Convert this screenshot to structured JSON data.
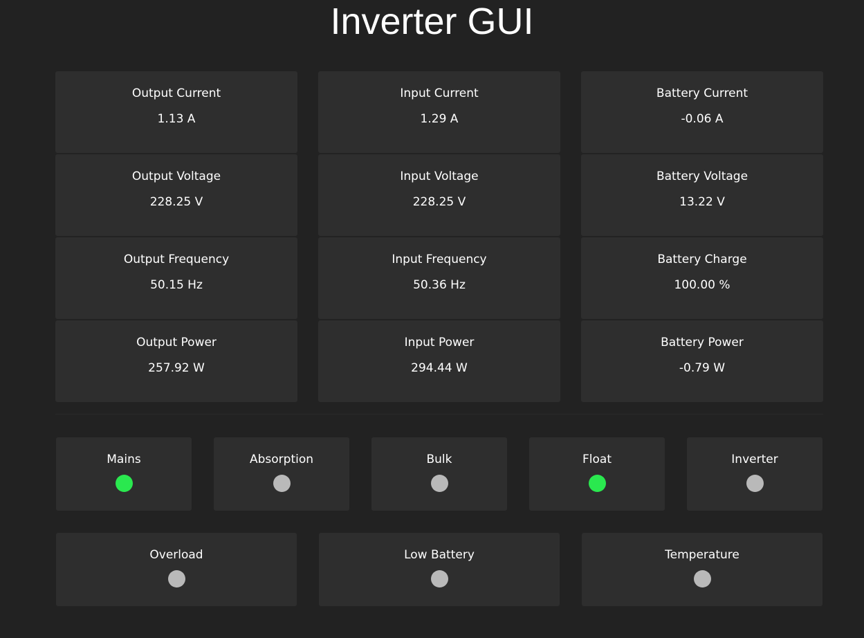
{
  "title": "Inverter GUI",
  "colors": {
    "on": "#2ae84f",
    "off": "#b9b9b9",
    "background": "#222222",
    "card": "#2e2e2e"
  },
  "metrics": [
    {
      "label": "Output Current",
      "value": "1.13 A"
    },
    {
      "label": "Input Current",
      "value": "1.29 A"
    },
    {
      "label": "Battery Current",
      "value": "-0.06 A"
    },
    {
      "label": "Output Voltage",
      "value": "228.25 V"
    },
    {
      "label": "Input Voltage",
      "value": "228.25 V"
    },
    {
      "label": "Battery Voltage",
      "value": "13.22 V"
    },
    {
      "label": "Output Frequency",
      "value": "50.15 Hz"
    },
    {
      "label": "Input Frequency",
      "value": "50.36 Hz"
    },
    {
      "label": "Battery Charge",
      "value": "100.00 %"
    },
    {
      "label": "Output Power",
      "value": "257.92 W"
    },
    {
      "label": "Input Power",
      "value": "294.44 W"
    },
    {
      "label": "Battery Power",
      "value": "-0.79 W"
    }
  ],
  "status_row1": [
    {
      "label": "Mains",
      "on": true
    },
    {
      "label": "Absorption",
      "on": false
    },
    {
      "label": "Bulk",
      "on": false
    },
    {
      "label": "Float",
      "on": true
    },
    {
      "label": "Inverter",
      "on": false
    }
  ],
  "status_row2": [
    {
      "label": "Overload",
      "on": false
    },
    {
      "label": "Low Battery",
      "on": false
    },
    {
      "label": "Temperature",
      "on": false
    }
  ]
}
